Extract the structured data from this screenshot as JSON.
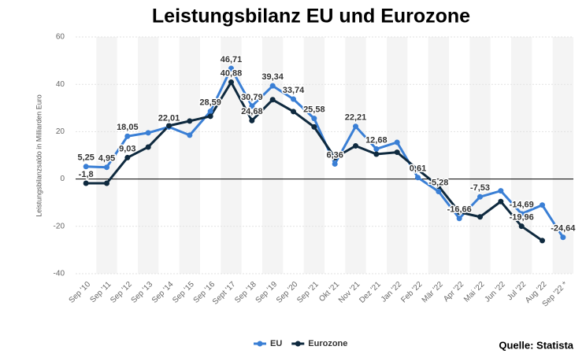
{
  "chart_data": {
    "type": "line",
    "title": "Leistungsbilanz EU und Eurozone",
    "y_label": "Leistungsbilanzsaldo in Milliarden Euro",
    "source": "Quelle: Statista",
    "categories": [
      "Sep '10",
      "Sep '11",
      "Sep '12",
      "Sep '13",
      "Sep '14",
      "Sep '15",
      "Sep '16",
      "Sept '17",
      "Sep '18",
      "Sep '19",
      "Sep '20",
      "Sep '21",
      "Okt '21",
      "Nov '21",
      "Dez '21",
      "Jan '22",
      "Feb '22",
      "Mär '22",
      "Apr '22",
      "Mai '22",
      "Jun '22",
      "Jul '22",
      "Aug '22",
      "Sep '22 *"
    ],
    "series": [
      {
        "name": "EU",
        "color": "#3a7fd5",
        "values": [
          5.25,
          4.95,
          18.05,
          19.5,
          22.01,
          18.5,
          28.59,
          46.71,
          30.79,
          39.34,
          33.74,
          25.58,
          6.36,
          22.21,
          12.68,
          15.5,
          0.61,
          -5.28,
          -16.66,
          -7.53,
          -5,
          -14.69,
          -11,
          -24.64
        ],
        "value_labels": [
          "5,25",
          "4,95",
          "18,05",
          null,
          "22,01",
          null,
          "28,59",
          "46,71",
          "30,79",
          "39,34",
          "33,74",
          "25,58",
          "6,36",
          "22,21",
          "12,68",
          null,
          "0,61",
          "-5,28",
          "-16,66",
          "-7,53",
          null,
          "-14,69",
          null,
          "-24,64"
        ]
      },
      {
        "name": "Eurozone",
        "color": "#0f2a3f",
        "values": [
          -1.8,
          -1.8,
          9.03,
          13.5,
          22.5,
          24.5,
          26.5,
          40.88,
          24.68,
          33.5,
          28.5,
          22,
          9,
          14,
          10.5,
          11.3,
          4,
          -3,
          -14,
          -16,
          -9.5,
          -19.96,
          -26,
          null
        ],
        "value_labels": [
          "-1,8",
          null,
          "9,03",
          null,
          null,
          null,
          null,
          "40,88",
          "24,68",
          null,
          null,
          null,
          null,
          null,
          null,
          null,
          null,
          null,
          null,
          null,
          null,
          "-19,96",
          null,
          null
        ]
      }
    ],
    "ylim": [
      -40,
      60
    ],
    "yticks": [
      -40,
      -20,
      0,
      20,
      40,
      60
    ],
    "grid": true
  }
}
